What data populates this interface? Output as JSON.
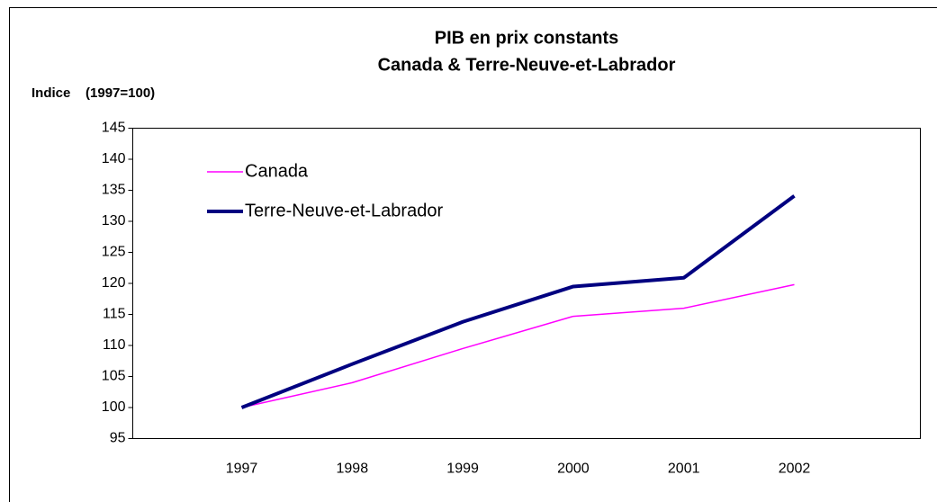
{
  "chart_data": {
    "type": "line",
    "title": "PIB en prix constants",
    "subtitle": "Canada & Terre-Neuve-et-Labrador",
    "y_label": "Indice    (1997=100)",
    "categories": [
      "1997",
      "1998",
      "1999",
      "2000",
      "2001",
      "2002"
    ],
    "series": [
      {
        "name": "Canada",
        "color": "#ff00ff",
        "values": [
          100,
          104,
          109.5,
          114.7,
          116,
          119.8
        ]
      },
      {
        "name": "Terre-Neuve-et-Labrador",
        "color": "#000080",
        "values": [
          100,
          107,
          113.8,
          119.5,
          120.9,
          134.1
        ]
      }
    ],
    "ylim": [
      95,
      145
    ],
    "yticks": [
      95,
      100,
      105,
      110,
      115,
      120,
      125,
      130,
      135,
      140,
      145
    ],
    "grid": false,
    "legend": "top-left"
  }
}
